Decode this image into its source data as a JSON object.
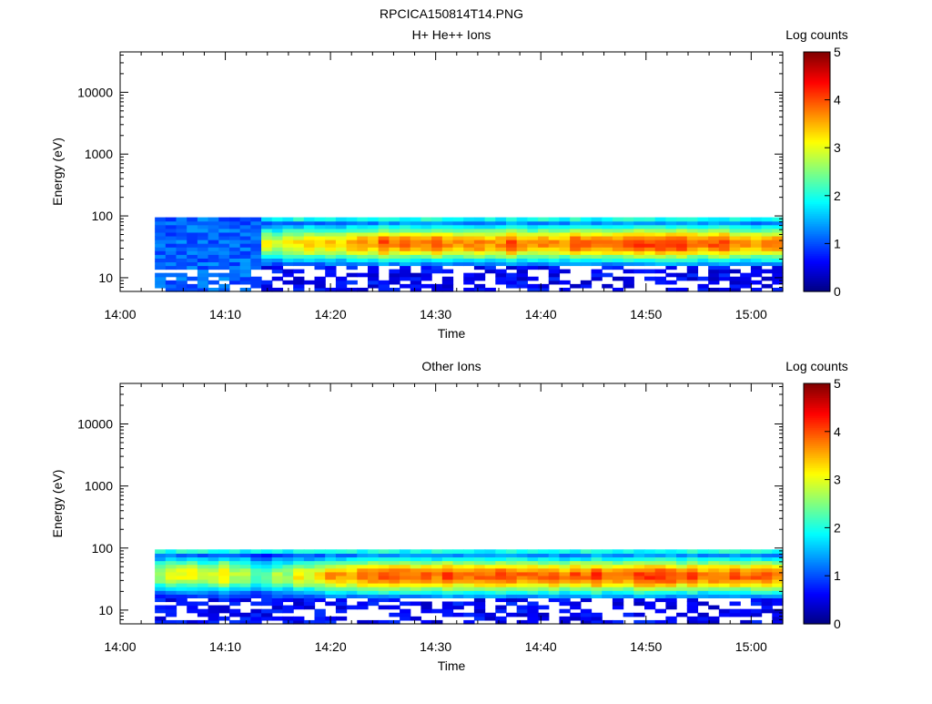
{
  "page": {
    "title": "RPCICA150814T14.PNG"
  },
  "colorscale": {
    "label": "Log counts",
    "min": 0,
    "max": 5,
    "ticks": [
      0,
      1,
      2,
      3,
      4,
      5
    ],
    "stops": [
      "#000080",
      "#0000ff",
      "#0080ff",
      "#00ffff",
      "#80ff80",
      "#ffff00",
      "#ff8000",
      "#ff0000",
      "#800000"
    ]
  },
  "chart_data": [
    {
      "type": "heatmap",
      "title": "H+ He++ Ions",
      "xlabel": "Time",
      "ylabel": "Energy (eV)",
      "yscale": "log",
      "ylim": [
        6,
        45000
      ],
      "xlim_minutes": [
        0,
        63
      ],
      "xticks": [
        "14:00",
        "14:10",
        "14:20",
        "14:30",
        "14:40",
        "14:50",
        "15:00"
      ],
      "yticks": [
        "10",
        "100",
        "1000",
        "10000"
      ],
      "data_start_minute": 3.3,
      "energy_top_eV": 95,
      "energy_bottom_eV": 6,
      "peak_log_counts_by_minute": [
        {
          "minute": 3.3,
          "value": 1.2
        },
        {
          "minute": 10,
          "value": 1.3
        },
        {
          "minute": 13,
          "value": 2.9
        },
        {
          "minute": 20,
          "value": 3.4
        },
        {
          "minute": 25,
          "value": 3.8
        },
        {
          "minute": 30,
          "value": 3.9
        },
        {
          "minute": 40,
          "value": 3.8
        },
        {
          "minute": 50,
          "value": 4.1
        },
        {
          "minute": 60,
          "value": 3.8
        },
        {
          "minute": 63,
          "value": 3.8
        }
      ]
    },
    {
      "type": "heatmap",
      "title": "Other Ions",
      "xlabel": "Time",
      "ylabel": "Energy (eV)",
      "yscale": "log",
      "ylim": [
        6,
        45000
      ],
      "xlim_minutes": [
        0,
        63
      ],
      "xticks": [
        "14:00",
        "14:10",
        "14:20",
        "14:30",
        "14:40",
        "14:50",
        "15:00"
      ],
      "yticks": [
        "10",
        "100",
        "1000",
        "10000"
      ],
      "data_start_minute": 3.3,
      "energy_top_eV": 95,
      "energy_bottom_eV": 6,
      "peak_log_counts_by_minute": [
        {
          "minute": 3.3,
          "value": 2.6
        },
        {
          "minute": 10,
          "value": 3.3
        },
        {
          "minute": 13,
          "value": 2.4
        },
        {
          "minute": 20,
          "value": 3.6
        },
        {
          "minute": 25,
          "value": 4.0
        },
        {
          "minute": 30,
          "value": 4.0
        },
        {
          "minute": 40,
          "value": 3.9
        },
        {
          "minute": 50,
          "value": 4.1
        },
        {
          "minute": 60,
          "value": 3.8
        },
        {
          "minute": 63,
          "value": 3.8
        }
      ]
    }
  ]
}
